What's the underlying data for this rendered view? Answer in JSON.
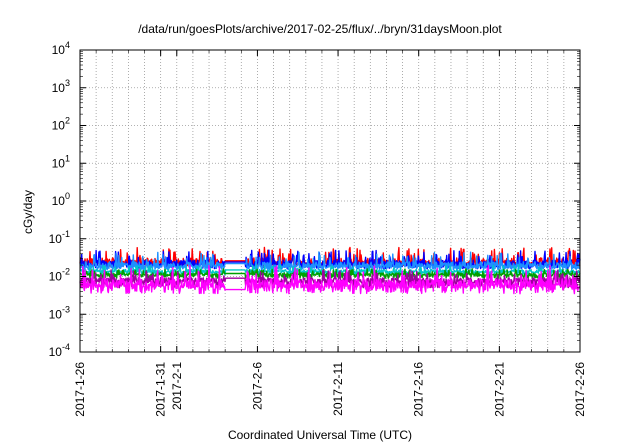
{
  "chart_data": {
    "type": "line",
    "title": "/data/run/goesPlots/archive/2017-02-25/flux/../bryn/31daysMoon.plot",
    "xlabel": "Coordinated Universal Time (UTC)",
    "ylabel": "cGy/day",
    "yscale": "log",
    "ylim": [
      0.0001,
      10000
    ],
    "xlim": [
      "2017-01-26",
      "2017-02-26"
    ],
    "grid": true,
    "y_ticks": [
      {
        "base": "10",
        "exp": "-4"
      },
      {
        "base": "10",
        "exp": "-3"
      },
      {
        "base": "10",
        "exp": "-2"
      },
      {
        "base": "10",
        "exp": "-1"
      },
      {
        "base": "10",
        "exp": "0"
      },
      {
        "base": "10",
        "exp": "1"
      },
      {
        "base": "10",
        "exp": "2"
      },
      {
        "base": "10",
        "exp": "3"
      },
      {
        "base": "10",
        "exp": "4"
      }
    ],
    "x_ticks": [
      {
        "date": "2017-01-26",
        "label": "2017-1-26"
      },
      {
        "date": "2017-01-31",
        "label": "2017-1-31"
      },
      {
        "date": "2017-02-01",
        "label": "2017-2-1"
      },
      {
        "date": "2017-02-06",
        "label": "2017-2-6"
      },
      {
        "date": "2017-02-11",
        "label": "2017-2-11"
      },
      {
        "date": "2017-02-16",
        "label": "2017-2-16"
      },
      {
        "date": "2017-02-21",
        "label": "2017-2-21"
      },
      {
        "date": "2017-02-26",
        "label": "2017-2-26"
      }
    ],
    "gap": [
      "2017-02-04",
      "2017-02-05"
    ],
    "series": [
      {
        "color": "#ff0000",
        "level": 0.025,
        "low": 0.018,
        "high": 0.06,
        "gap_level": 0.026
      },
      {
        "color": "#0000ff",
        "level": 0.022,
        "low": 0.016,
        "high": 0.05,
        "gap_level": 0.024
      },
      {
        "color": "#1e90ff",
        "level": 0.02,
        "low": 0.015,
        "high": 0.045,
        "gap_level": 0.022
      },
      {
        "color": "#00c8c8",
        "level": 0.014,
        "low": 0.011,
        "high": 0.02,
        "gap_level": 0.015
      },
      {
        "color": "#00a000",
        "level": 0.0115,
        "low": 0.009,
        "high": 0.016,
        "gap_level": 0.012
      },
      {
        "color": "#a000a0",
        "level": 0.008,
        "low": 0.005,
        "high": 0.015,
        "gap_level": 0.009
      },
      {
        "color": "#ff00ff",
        "level": 0.0065,
        "low": 0.0035,
        "high": 0.02,
        "gap_level": 0.0045
      }
    ]
  }
}
